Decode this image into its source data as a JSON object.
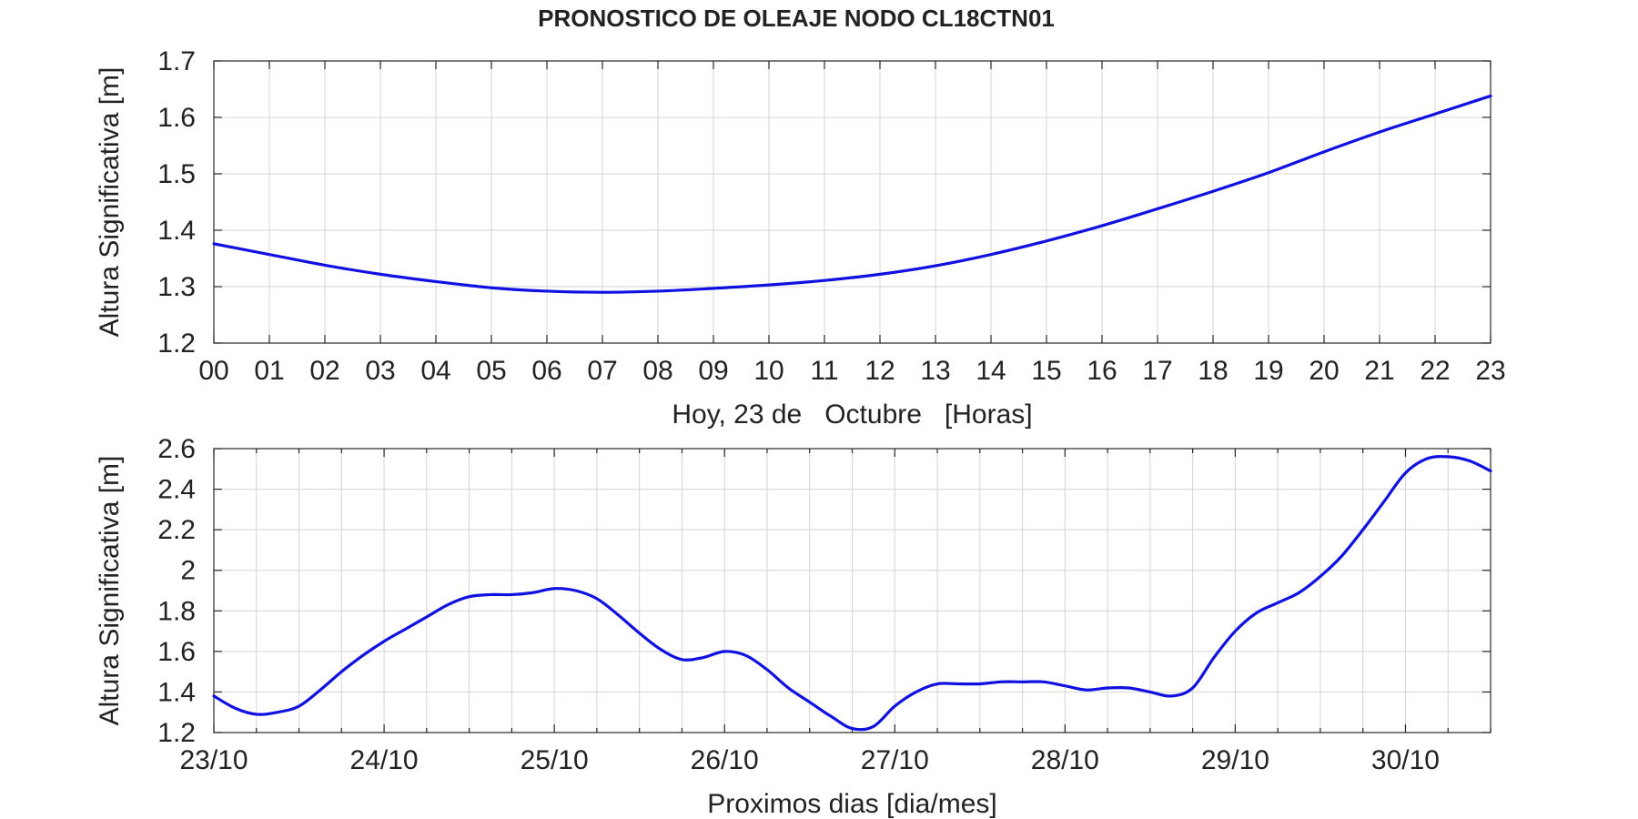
{
  "title": "PRONOSTICO DE OLEAJE NODO CL18CTN01",
  "colors": {
    "line": "#1010e0",
    "grid": "#d4d4d4",
    "axis": "#262626"
  },
  "chart_data": [
    {
      "type": "line",
      "title": "PRONOSTICO DE OLEAJE NODO CL18CTN01",
      "xlabel": "Hoy, 23 de   Octubre   [Horas]",
      "ylabel": "Altura Significativa [m]",
      "xlim": [
        0,
        23
      ],
      "ylim": [
        1.2,
        1.7
      ],
      "grid": true,
      "x_tick_labels": [
        "00",
        "01",
        "02",
        "03",
        "04",
        "05",
        "06",
        "07",
        "08",
        "09",
        "10",
        "11",
        "12",
        "13",
        "14",
        "15",
        "16",
        "17",
        "18",
        "19",
        "20",
        "21",
        "22",
        "23"
      ],
      "y_ticks": [
        1.2,
        1.3,
        1.4,
        1.5,
        1.6,
        1.7
      ],
      "y_tick_labels": [
        "1.2",
        "1.3",
        "1.4",
        "1.5",
        "1.6",
        "1.7"
      ],
      "series": [
        {
          "x": [
            0,
            1,
            2,
            3,
            4,
            5,
            6,
            7,
            8,
            9,
            10,
            11,
            12,
            13,
            14,
            15,
            16,
            17,
            18,
            19,
            20,
            21,
            22,
            23
          ],
          "values": [
            1.376,
            1.357,
            1.338,
            1.322,
            1.309,
            1.298,
            1.292,
            1.29,
            1.292,
            1.297,
            1.303,
            1.311,
            1.322,
            1.337,
            1.357,
            1.381,
            1.408,
            1.438,
            1.469,
            1.502,
            1.539,
            1.574,
            1.606,
            1.638
          ]
        }
      ]
    },
    {
      "type": "line",
      "xlabel": "Proximos dias [dia/mes]",
      "ylabel": "Altura Significativa [m]",
      "xlim": [
        "23/10 00:00",
        "30/10 12:00"
      ],
      "ylim": [
        1.2,
        2.6
      ],
      "grid": true,
      "x_tick_labels": [
        "23/10",
        "24/10",
        "25/10",
        "26/10",
        "27/10",
        "28/10",
        "29/10",
        "30/10"
      ],
      "y_ticks": [
        1.2,
        1.4,
        1.6,
        1.8,
        2,
        2.2,
        2.4,
        2.6
      ],
      "y_tick_labels": [
        "1.2",
        "1.4",
        "1.6",
        "1.8",
        "2",
        "2.2",
        "2.4",
        "2.6"
      ],
      "series": [
        {
          "x": [
            "23/10 00:00",
            "23/10 03:00",
            "23/10 06:00",
            "23/10 09:00",
            "23/10 12:00",
            "23/10 15:00",
            "23/10 18:00",
            "23/10 21:00",
            "24/10 00:00",
            "24/10 03:00",
            "24/10 06:00",
            "24/10 09:00",
            "24/10 12:00",
            "24/10 15:00",
            "24/10 18:00",
            "24/10 21:00",
            "25/10 00:00",
            "25/10 03:00",
            "25/10 06:00",
            "25/10 09:00",
            "25/10 12:00",
            "25/10 15:00",
            "25/10 18:00",
            "25/10 21:00",
            "26/10 00:00",
            "26/10 03:00",
            "26/10 06:00",
            "26/10 09:00",
            "26/10 12:00",
            "26/10 15:00",
            "26/10 18:00",
            "26/10 21:00",
            "27/10 00:00",
            "27/10 03:00",
            "27/10 06:00",
            "27/10 09:00",
            "27/10 12:00",
            "27/10 15:00",
            "27/10 18:00",
            "27/10 21:00",
            "28/10 00:00",
            "28/10 03:00",
            "28/10 06:00",
            "28/10 09:00",
            "28/10 12:00",
            "28/10 15:00",
            "28/10 18:00",
            "28/10 21:00",
            "29/10 00:00",
            "29/10 03:00",
            "29/10 06:00",
            "29/10 09:00",
            "29/10 12:00",
            "29/10 15:00",
            "29/10 18:00",
            "29/10 21:00",
            "30/10 00:00",
            "30/10 03:00",
            "30/10 06:00",
            "30/10 09:00",
            "30/10 12:00"
          ],
          "values": [
            1.38,
            1.32,
            1.29,
            1.3,
            1.33,
            1.41,
            1.5,
            1.58,
            1.65,
            1.71,
            1.77,
            1.83,
            1.87,
            1.88,
            1.88,
            1.89,
            1.91,
            1.9,
            1.86,
            1.78,
            1.69,
            1.61,
            1.56,
            1.57,
            1.6,
            1.58,
            1.51,
            1.42,
            1.35,
            1.28,
            1.22,
            1.23,
            1.33,
            1.4,
            1.44,
            1.44,
            1.44,
            1.45,
            1.45,
            1.45,
            1.43,
            1.41,
            1.42,
            1.42,
            1.4,
            1.38,
            1.42,
            1.57,
            1.7,
            1.79,
            1.84,
            1.89,
            1.97,
            2.07,
            2.2,
            2.34,
            2.48,
            2.55,
            2.56,
            2.54,
            2.49
          ]
        }
      ]
    }
  ]
}
